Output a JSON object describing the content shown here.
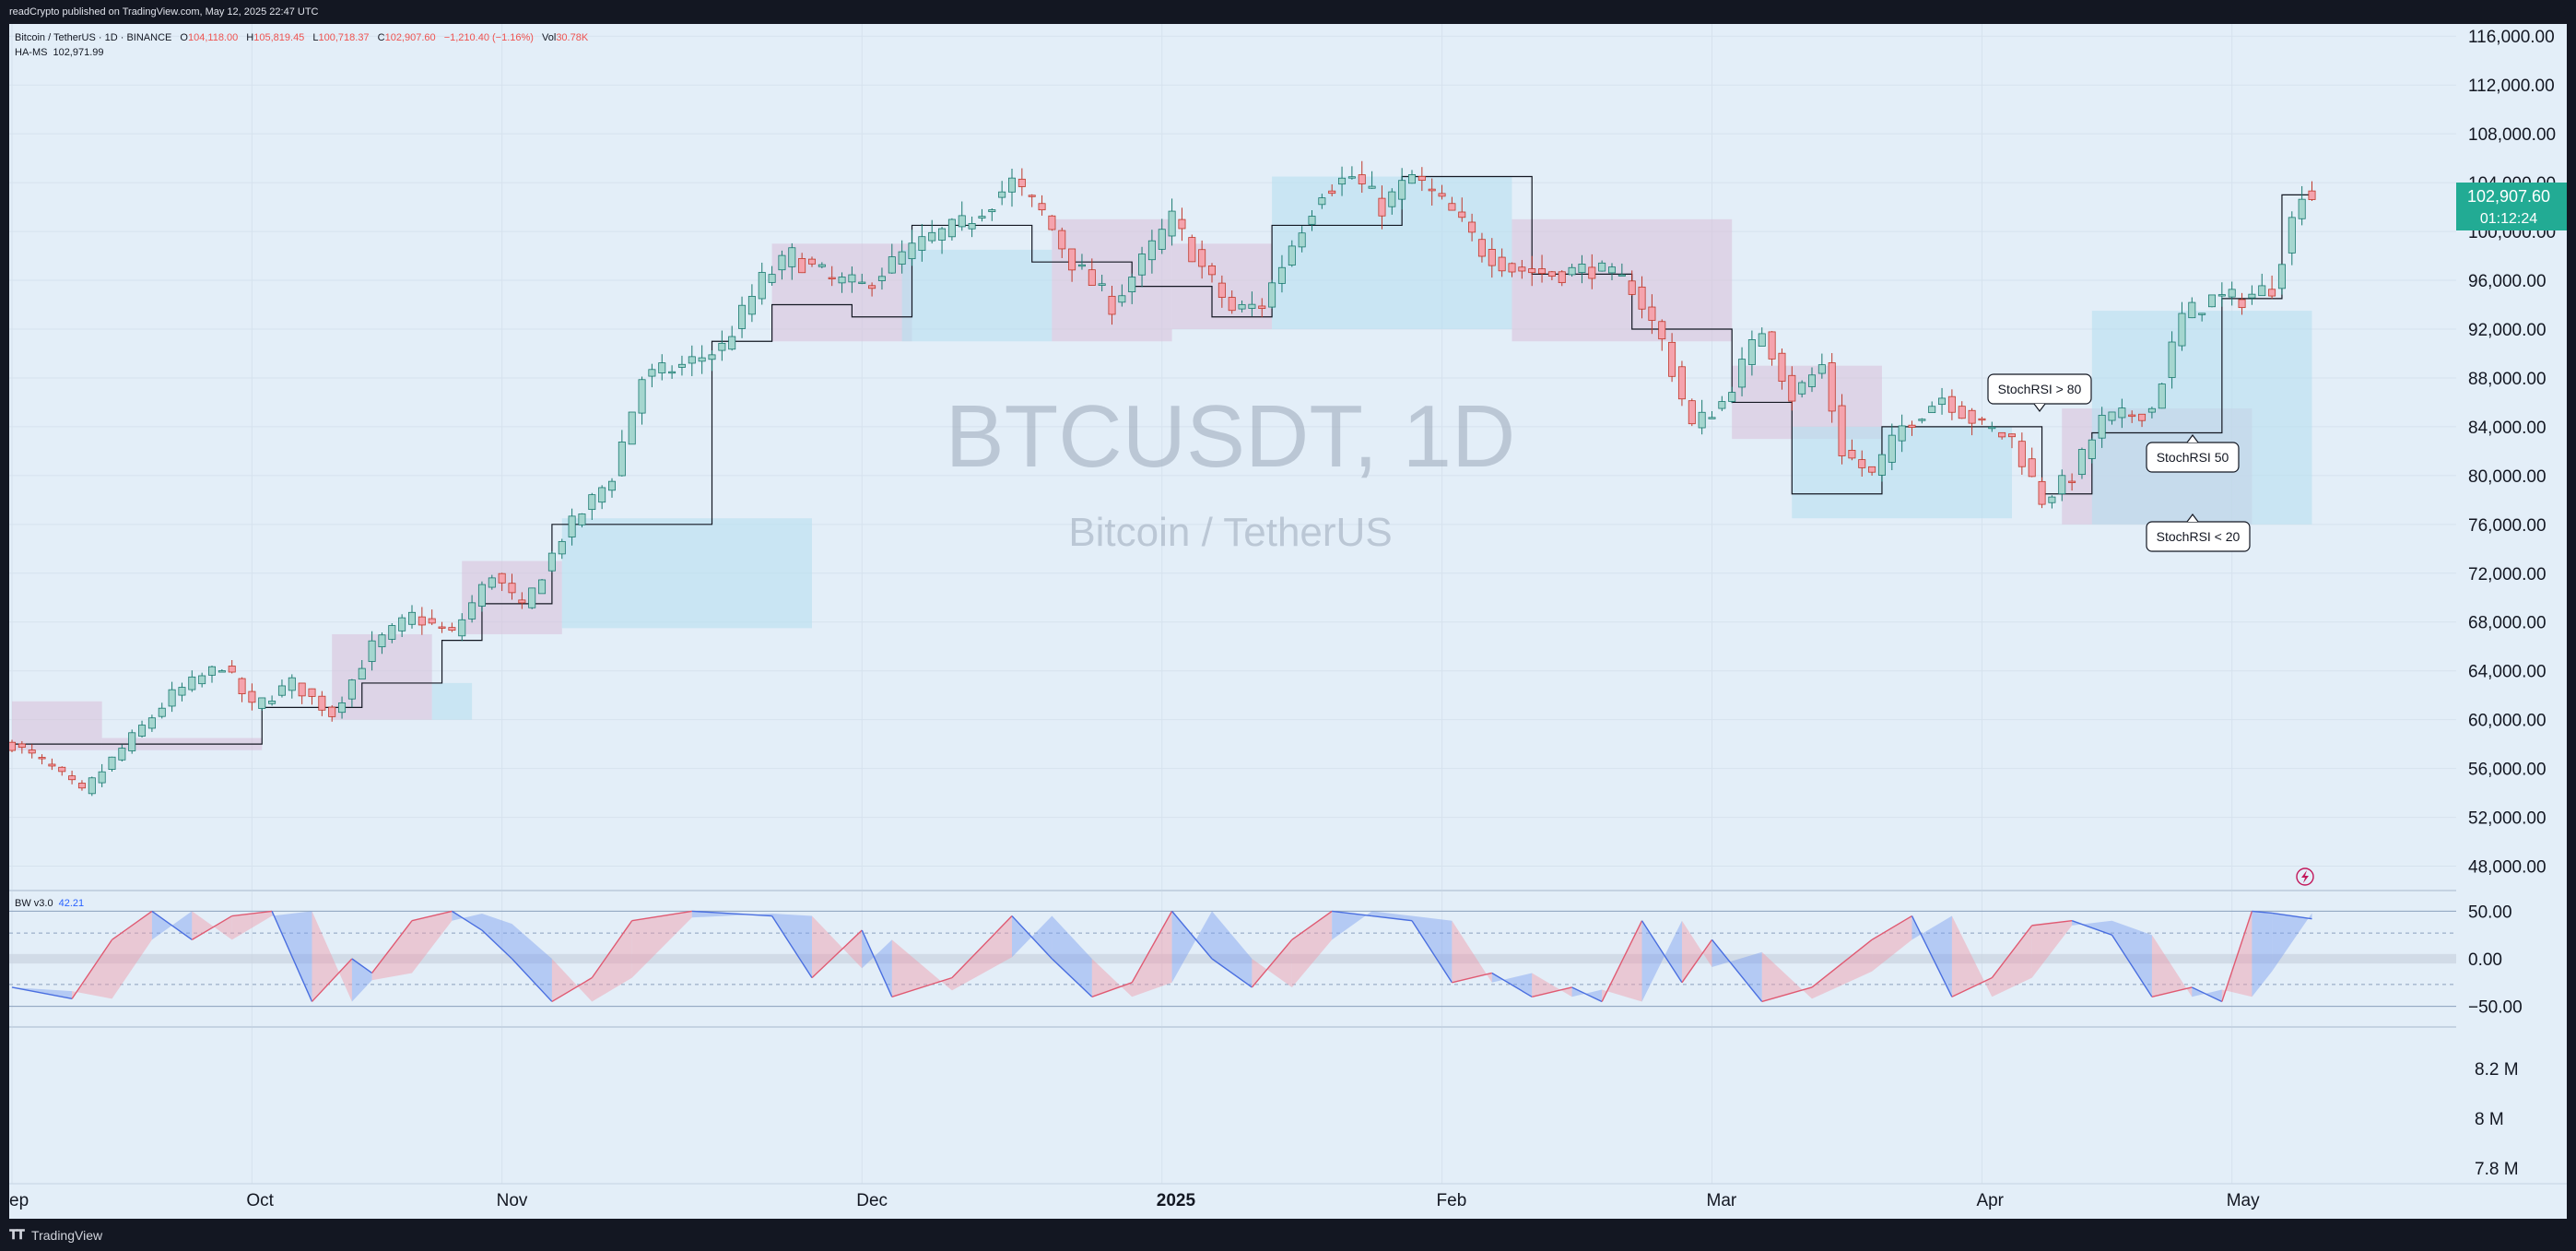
{
  "header": {
    "publish_text": "readCrypto published on TradingView.com, May 12, 2025 22:47 UTC"
  },
  "legend": {
    "symbol": "Bitcoin / TetherUS · 1D · BINANCE",
    "o_label": "O",
    "o_value": "104,118.00",
    "h_label": "H",
    "h_value": "105,819.45",
    "l_label": "L",
    "l_value": "100,718.37",
    "c_label": "C",
    "c_value": "102,907.60",
    "change": "−1,210.40 (−1.16%)",
    "vol_label": "Vol",
    "vol_value": "30.78K",
    "indicator_name": "HA-MS",
    "indicator_value": "102,971.99"
  },
  "osc_legend": {
    "name": "BW v3.0",
    "value": "42.21"
  },
  "watermark": {
    "symbol": "BTCUSDT, 1D",
    "name": "Bitcoin / TetherUS"
  },
  "annotations": {
    "above80": "StochRSI > 80",
    "mid50": "StochRSI 50",
    "below20": "StochRSI < 20"
  },
  "price_badge": {
    "price": "102,907.60",
    "countdown": "01:12:24"
  },
  "footer": {
    "brand": "TradingView"
  },
  "colors": {
    "up": "#26a69a",
    "down": "#ef5350",
    "bg": "#e3eef8",
    "stoch_up": "#ef9aa8",
    "stoch_down": "#7b9ef0",
    "badge": "#22ab94"
  },
  "chart_data": {
    "type": "candlestick",
    "price_axis": {
      "min": 46000,
      "max": 117000,
      "ticks": [
        "116,000.00",
        "112,000.00",
        "108,000.00",
        "104,000.00",
        "100,000.00",
        "96,000.00",
        "92,000.00",
        "88,000.00",
        "84,000.00",
        "80,000.00",
        "76,000.00",
        "72,000.00",
        "68,000.00",
        "64,000.00",
        "60,000.00",
        "56,000.00",
        "52,000.00",
        "48,000.00"
      ],
      "tick_values": [
        116000,
        112000,
        108000,
        104000,
        100000,
        96000,
        92000,
        88000,
        84000,
        80000,
        76000,
        72000,
        68000,
        64000,
        60000,
        56000,
        52000,
        48000
      ]
    },
    "osc_axis": {
      "min": -62,
      "max": 62,
      "ticks": [
        "50.00",
        "0.00",
        "−50.00"
      ],
      "tick_values": [
        50,
        0,
        -50
      ]
    },
    "volume_axis": {
      "ticks": [
        "8.2 M",
        "8 M",
        "7.8 M"
      ],
      "tick_values": [
        8.2,
        8.0,
        7.8
      ]
    },
    "time_axis": {
      "labels": [
        "ep",
        "Oct",
        "Nov",
        "Dec",
        "2025",
        "Feb",
        "Mar",
        "Apr",
        "May"
      ],
      "day_index": [
        0,
        24,
        49,
        85,
        115,
        143,
        170,
        197,
        222
      ]
    },
    "anchors": [
      {
        "d": 0,
        "p": 58000
      },
      {
        "d": 4,
        "p": 56000
      },
      {
        "d": 7,
        "p": 54000
      },
      {
        "d": 12,
        "p": 58500
      },
      {
        "d": 16,
        "p": 62000
      },
      {
        "d": 21,
        "p": 64500
      },
      {
        "d": 24,
        "p": 61000
      },
      {
        "d": 28,
        "p": 63000
      },
      {
        "d": 32,
        "p": 60500
      },
      {
        "d": 36,
        "p": 66000
      },
      {
        "d": 40,
        "p": 68500
      },
      {
        "d": 44,
        "p": 67000
      },
      {
        "d": 48,
        "p": 72000
      },
      {
        "d": 51,
        "p": 69000
      },
      {
        "d": 55,
        "p": 75000
      },
      {
        "d": 60,
        "p": 80000
      },
      {
        "d": 63,
        "p": 88000
      },
      {
        "d": 67,
        "p": 89000
      },
      {
        "d": 71,
        "p": 90500
      },
      {
        "d": 75,
        "p": 96000
      },
      {
        "d": 78,
        "p": 98000
      },
      {
        "d": 82,
        "p": 96000
      },
      {
        "d": 85,
        "p": 95500
      },
      {
        "d": 89,
        "p": 98000
      },
      {
        "d": 92,
        "p": 99500
      },
      {
        "d": 95,
        "p": 100500
      },
      {
        "d": 100,
        "p": 104000
      },
      {
        "d": 103,
        "p": 101500
      },
      {
        "d": 106,
        "p": 97500
      },
      {
        "d": 110,
        "p": 94000
      },
      {
        "d": 113,
        "p": 97500
      },
      {
        "d": 116,
        "p": 101000
      },
      {
        "d": 119,
        "p": 97000
      },
      {
        "d": 122,
        "p": 93500
      },
      {
        "d": 125,
        "p": 94000
      },
      {
        "d": 128,
        "p": 99000
      },
      {
        "d": 131,
        "p": 103500
      },
      {
        "d": 134,
        "p": 104500
      },
      {
        "d": 137,
        "p": 102000
      },
      {
        "d": 140,
        "p": 104500
      },
      {
        "d": 144,
        "p": 101500
      },
      {
        "d": 147,
        "p": 98500
      },
      {
        "d": 150,
        "p": 97000
      },
      {
        "d": 154,
        "p": 96500
      },
      {
        "d": 158,
        "p": 97000
      },
      {
        "d": 162,
        "p": 95500
      },
      {
        "d": 165,
        "p": 91000
      },
      {
        "d": 168,
        "p": 84000
      },
      {
        "d": 171,
        "p": 86000
      },
      {
        "d": 175,
        "p": 92000
      },
      {
        "d": 178,
        "p": 86500
      },
      {
        "d": 181,
        "p": 89000
      },
      {
        "d": 183,
        "p": 82000
      },
      {
        "d": 186,
        "p": 80000
      },
      {
        "d": 189,
        "p": 84000
      },
      {
        "d": 193,
        "p": 86500
      },
      {
        "d": 197,
        "p": 84000
      },
      {
        "d": 200,
        "p": 83000
      },
      {
        "d": 203,
        "p": 78000
      },
      {
        "d": 206,
        "p": 80000
      },
      {
        "d": 209,
        "p": 84500
      },
      {
        "d": 212,
        "p": 85000
      },
      {
        "d": 214,
        "p": 85500
      },
      {
        "d": 217,
        "p": 93000
      },
      {
        "d": 220,
        "p": 94500
      },
      {
        "d": 223,
        "p": 94500
      },
      {
        "d": 226,
        "p": 95500
      },
      {
        "d": 229,
        "p": 103500
      },
      {
        "d": 230,
        "p": 102907
      }
    ],
    "steps": [
      {
        "d0": 0,
        "d1": 25,
        "p": 58000
      },
      {
        "d0": 25,
        "d1": 35,
        "p": 61000
      },
      {
        "d0": 35,
        "d1": 43,
        "p": 63000
      },
      {
        "d0": 43,
        "d1": 47,
        "p": 66500
      },
      {
        "d0": 47,
        "d1": 54,
        "p": 69500
      },
      {
        "d0": 54,
        "d1": 70,
        "p": 76000
      },
      {
        "d0": 70,
        "d1": 76,
        "p": 91000
      },
      {
        "d0": 76,
        "d1": 84,
        "p": 94000
      },
      {
        "d0": 84,
        "d1": 90,
        "p": 93000
      },
      {
        "d0": 90,
        "d1": 102,
        "p": 100500
      },
      {
        "d0": 102,
        "d1": 112,
        "p": 97500
      },
      {
        "d0": 112,
        "d1": 120,
        "p": 95500
      },
      {
        "d0": 120,
        "d1": 126,
        "p": 93000
      },
      {
        "d0": 126,
        "d1": 139,
        "p": 100500
      },
      {
        "d0": 139,
        "d1": 152,
        "p": 104500
      },
      {
        "d0": 152,
        "d1": 162,
        "p": 96500
      },
      {
        "d0": 162,
        "d1": 172,
        "p": 92000
      },
      {
        "d0": 172,
        "d1": 178,
        "p": 86000
      },
      {
        "d0": 178,
        "d1": 187,
        "p": 78500
      },
      {
        "d0": 187,
        "d1": 203,
        "p": 84000
      },
      {
        "d0": 203,
        "d1": 208,
        "p": 78500
      },
      {
        "d0": 208,
        "d1": 221,
        "p": 83500
      },
      {
        "d0": 221,
        "d1": 227,
        "p": 94500
      },
      {
        "d0": 227,
        "d1": 230,
        "p": 103000
      }
    ],
    "zones": [
      {
        "d0": 0,
        "d1": 9,
        "lo": 57500,
        "hi": 61500,
        "kind": "red"
      },
      {
        "d0": 9,
        "d1": 25,
        "lo": 57500,
        "hi": 58500,
        "kind": "red"
      },
      {
        "d0": 32,
        "d1": 42,
        "lo": 60000,
        "hi": 67000,
        "kind": "red"
      },
      {
        "d0": 42,
        "d1": 46,
        "lo": 60000,
        "hi": 63000,
        "kind": "blue"
      },
      {
        "d0": 45,
        "d1": 55,
        "lo": 67000,
        "hi": 73000,
        "kind": "red"
      },
      {
        "d0": 55,
        "d1": 80,
        "lo": 67500,
        "hi": 76500,
        "kind": "blue"
      },
      {
        "d0": 76,
        "d1": 90,
        "lo": 91000,
        "hi": 99000,
        "kind": "red"
      },
      {
        "d0": 89,
        "d1": 104,
        "lo": 91000,
        "hi": 98500,
        "kind": "blue"
      },
      {
        "d0": 104,
        "d1": 116,
        "lo": 91000,
        "hi": 101000,
        "kind": "red"
      },
      {
        "d0": 116,
        "d1": 126,
        "lo": 92000,
        "hi": 99000,
        "kind": "red"
      },
      {
        "d0": 126,
        "d1": 150,
        "lo": 92000,
        "hi": 104500,
        "kind": "blue"
      },
      {
        "d0": 150,
        "d1": 172,
        "lo": 91000,
        "hi": 101000,
        "kind": "red"
      },
      {
        "d0": 172,
        "d1": 187,
        "lo": 83000,
        "hi": 89000,
        "kind": "red"
      },
      {
        "d0": 178,
        "d1": 200,
        "lo": 76500,
        "hi": 84000,
        "kind": "blue"
      },
      {
        "d0": 205,
        "d1": 224,
        "lo": 76000,
        "hi": 85500,
        "kind": "red"
      },
      {
        "d0": 208,
        "d1": 230,
        "lo": 76000,
        "hi": 93500,
        "kind": "blue"
      }
    ],
    "stoch": [
      {
        "d": 0,
        "k": -30
      },
      {
        "d": 6,
        "k": -42
      },
      {
        "d": 10,
        "k": 20
      },
      {
        "d": 14,
        "k": 50
      },
      {
        "d": 18,
        "k": 20
      },
      {
        "d": 22,
        "k": 45
      },
      {
        "d": 26,
        "k": 50
      },
      {
        "d": 30,
        "k": -45
      },
      {
        "d": 34,
        "k": 0
      },
      {
        "d": 36,
        "k": -15
      },
      {
        "d": 40,
        "k": 40
      },
      {
        "d": 44,
        "k": 50
      },
      {
        "d": 47,
        "k": 30
      },
      {
        "d": 50,
        "k": 0
      },
      {
        "d": 54,
        "k": -45
      },
      {
        "d": 58,
        "k": -20
      },
      {
        "d": 62,
        "k": 40
      },
      {
        "d": 68,
        "k": 50
      },
      {
        "d": 76,
        "k": 45
      },
      {
        "d": 80,
        "k": -20
      },
      {
        "d": 85,
        "k": 30
      },
      {
        "d": 88,
        "k": -40
      },
      {
        "d": 94,
        "k": -20
      },
      {
        "d": 100,
        "k": 45
      },
      {
        "d": 104,
        "k": 0
      },
      {
        "d": 108,
        "k": -40
      },
      {
        "d": 112,
        "k": -25
      },
      {
        "d": 116,
        "k": 50
      },
      {
        "d": 120,
        "k": 0
      },
      {
        "d": 124,
        "k": -30
      },
      {
        "d": 128,
        "k": 20
      },
      {
        "d": 132,
        "k": 50
      },
      {
        "d": 136,
        "k": 45
      },
      {
        "d": 140,
        "k": 40
      },
      {
        "d": 144,
        "k": -25
      },
      {
        "d": 148,
        "k": -15
      },
      {
        "d": 152,
        "k": -40
      },
      {
        "d": 156,
        "k": -30
      },
      {
        "d": 159,
        "k": -45
      },
      {
        "d": 163,
        "k": 40
      },
      {
        "d": 167,
        "k": -25
      },
      {
        "d": 170,
        "k": 20
      },
      {
        "d": 175,
        "k": -45
      },
      {
        "d": 180,
        "k": -30
      },
      {
        "d": 186,
        "k": 20
      },
      {
        "d": 190,
        "k": 45
      },
      {
        "d": 194,
        "k": -40
      },
      {
        "d": 198,
        "k": -20
      },
      {
        "d": 202,
        "k": 35
      },
      {
        "d": 206,
        "k": 40
      },
      {
        "d": 210,
        "k": 25
      },
      {
        "d": 214,
        "k": -40
      },
      {
        "d": 218,
        "k": -30
      },
      {
        "d": 221,
        "k": -45
      },
      {
        "d": 224,
        "k": 50
      },
      {
        "d": 226,
        "k": 48
      },
      {
        "d": 230,
        "k": 42
      }
    ]
  }
}
